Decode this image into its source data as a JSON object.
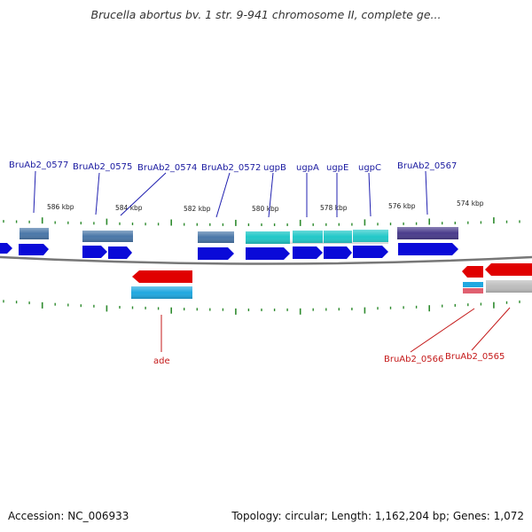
{
  "title": "Brucella abortus bv. 1 str. 9-941 chromosome II, complete ge...",
  "footer": {
    "accession": "Accession: NC_006933",
    "summary": "Topology: circular; Length: 1,162,204 bp; Genes: 1,072"
  },
  "colors": {
    "cds": "#0a0ad8",
    "cds_reverse": "#e00000",
    "backbone": "#777777",
    "tick": "#2e8b2e",
    "label_top": "#1a1aa0",
    "label_bottom": "#c41818",
    "steelblue": "#4a77a8",
    "cyan": "#22c8c8",
    "skyblue": "#20a8e0",
    "purple": "#4a3c8c",
    "pink": "#e06070",
    "grey": "#bdbdbd"
  },
  "scale_labels": [
    "586 kbp",
    "584 kbp",
    "582 kbp",
    "580 kbp",
    "578 kbp",
    "576 kbp",
    "574 kbp"
  ],
  "genes_top": [
    "BruAb2_0577",
    "BruAb2_0575",
    "BruAb2_0574",
    "BruAb2_0572",
    "ugpB",
    "ugpA",
    "ugpE",
    "ugpC",
    "BruAb2_0567"
  ],
  "genes_bottom": [
    "ade",
    "BruAb2_0566",
    "BruAb2_0565"
  ]
}
